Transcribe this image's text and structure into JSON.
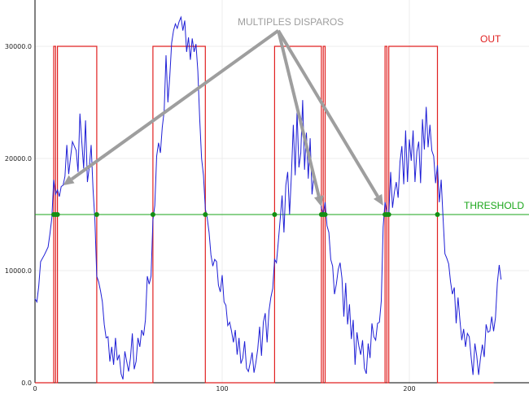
{
  "chart_data": {
    "type": "line",
    "x_ticks": [
      "0",
      "100",
      "200"
    ],
    "y_ticks": [
      "0.0",
      "10000.0",
      "20000.0",
      "30000.0"
    ],
    "xlim": [
      0,
      262
    ],
    "ylim": [
      0,
      34000
    ],
    "grid": true,
    "threshold": 15000,
    "out_high": 30000,
    "out_low": 0,
    "signal": [
      [
        0,
        7500
      ],
      [
        1,
        7200
      ],
      [
        2,
        8600
      ],
      [
        3,
        10800
      ],
      [
        5,
        11400
      ],
      [
        7,
        12100
      ],
      [
        8,
        13300
      ],
      [
        9,
        14700
      ],
      [
        10,
        18100
      ],
      [
        11,
        16800
      ],
      [
        12,
        17200
      ],
      [
        13,
        16600
      ],
      [
        14,
        17500
      ],
      [
        15,
        17600
      ],
      [
        16,
        18400
      ],
      [
        17,
        21200
      ],
      [
        18,
        18600
      ],
      [
        19,
        20100
      ],
      [
        20,
        21500
      ],
      [
        21,
        21100
      ],
      [
        22,
        20700
      ],
      [
        23,
        18800
      ],
      [
        24,
        24000
      ],
      [
        25,
        21500
      ],
      [
        26,
        19100
      ],
      [
        27,
        23400
      ],
      [
        28,
        17900
      ],
      [
        29,
        19200
      ],
      [
        30,
        21200
      ],
      [
        31,
        17300
      ],
      [
        32,
        14500
      ],
      [
        33,
        9500
      ],
      [
        34,
        9000
      ],
      [
        35,
        8200
      ],
      [
        36,
        7200
      ],
      [
        37,
        5200
      ],
      [
        38,
        4000
      ],
      [
        39,
        4100
      ],
      [
        40,
        1900
      ],
      [
        41,
        3200
      ],
      [
        42,
        1600
      ],
      [
        43,
        4000
      ],
      [
        44,
        2000
      ],
      [
        45,
        2500
      ],
      [
        46,
        800
      ],
      [
        47,
        300
      ],
      [
        48,
        2800
      ],
      [
        49,
        1900
      ],
      [
        50,
        1000
      ],
      [
        51,
        2200
      ],
      [
        52,
        4400
      ],
      [
        53,
        1200
      ],
      [
        54,
        1900
      ],
      [
        55,
        4000
      ],
      [
        56,
        3200
      ],
      [
        57,
        4700
      ],
      [
        58,
        4200
      ],
      [
        59,
        5600
      ],
      [
        60,
        9500
      ],
      [
        61,
        8800
      ],
      [
        62,
        9500
      ],
      [
        63,
        14500
      ],
      [
        64,
        15800
      ],
      [
        65,
        20200
      ],
      [
        66,
        21400
      ],
      [
        67,
        20500
      ],
      [
        68,
        22800
      ],
      [
        69,
        24200
      ],
      [
        70,
        29200
      ],
      [
        71,
        25000
      ],
      [
        72,
        27300
      ],
      [
        73,
        30300
      ],
      [
        74,
        31400
      ],
      [
        75,
        32000
      ],
      [
        76,
        31600
      ],
      [
        77,
        32200
      ],
      [
        78,
        32600
      ],
      [
        79,
        31400
      ],
      [
        80,
        32300
      ],
      [
        81,
        29500
      ],
      [
        82,
        30800
      ],
      [
        83,
        28800
      ],
      [
        84,
        30700
      ],
      [
        85,
        29500
      ],
      [
        86,
        30200
      ],
      [
        87,
        27800
      ],
      [
        88,
        23500
      ],
      [
        89,
        20000
      ],
      [
        90,
        18500
      ],
      [
        91,
        15500
      ],
      [
        92,
        14700
      ],
      [
        93,
        13400
      ],
      [
        94,
        11400
      ],
      [
        95,
        10400
      ],
      [
        96,
        11000
      ],
      [
        97,
        10800
      ],
      [
        98,
        8700
      ],
      [
        99,
        8100
      ],
      [
        100,
        9600
      ],
      [
        101,
        7200
      ],
      [
        102,
        6900
      ],
      [
        103,
        5100
      ],
      [
        104,
        5400
      ],
      [
        105,
        4600
      ],
      [
        106,
        3600
      ],
      [
        107,
        4700
      ],
      [
        108,
        2500
      ],
      [
        109,
        4000
      ],
      [
        110,
        1700
      ],
      [
        111,
        2200
      ],
      [
        112,
        3700
      ],
      [
        113,
        1300
      ],
      [
        114,
        1000
      ],
      [
        115,
        1800
      ],
      [
        116,
        2700
      ],
      [
        117,
        900
      ],
      [
        118,
        1800
      ],
      [
        119,
        3000
      ],
      [
        120,
        5000
      ],
      [
        121,
        2400
      ],
      [
        122,
        5400
      ],
      [
        123,
        6200
      ],
      [
        124,
        3600
      ],
      [
        125,
        6400
      ],
      [
        126,
        7600
      ],
      [
        127,
        8400
      ],
      [
        128,
        11000
      ],
      [
        129,
        10700
      ],
      [
        130,
        12600
      ],
      [
        131,
        14600
      ],
      [
        132,
        16700
      ],
      [
        133,
        13400
      ],
      [
        134,
        17600
      ],
      [
        135,
        18800
      ],
      [
        136,
        15000
      ],
      [
        137,
        18600
      ],
      [
        138,
        23000
      ],
      [
        139,
        18500
      ],
      [
        140,
        24200
      ],
      [
        141,
        19200
      ],
      [
        142,
        20500
      ],
      [
        143,
        25200
      ],
      [
        144,
        19000
      ],
      [
        145,
        22300
      ],
      [
        146,
        18200
      ],
      [
        147,
        21800
      ],
      [
        148,
        16800
      ],
      [
        149,
        18500
      ],
      [
        150,
        17700
      ],
      [
        151,
        16600
      ],
      [
        152,
        16800
      ],
      [
        153,
        15600
      ],
      [
        154,
        15000
      ],
      [
        155,
        16100
      ],
      [
        156,
        14000
      ],
      [
        157,
        13400
      ],
      [
        158,
        11000
      ],
      [
        159,
        10400
      ],
      [
        160,
        7900
      ],
      [
        161,
        8800
      ],
      [
        162,
        10100
      ],
      [
        163,
        10700
      ],
      [
        164,
        9300
      ],
      [
        165,
        5900
      ],
      [
        166,
        8900
      ],
      [
        167,
        5200
      ],
      [
        168,
        7000
      ],
      [
        169,
        3900
      ],
      [
        170,
        5600
      ],
      [
        171,
        1600
      ],
      [
        172,
        4500
      ],
      [
        173,
        3300
      ],
      [
        174,
        2500
      ],
      [
        175,
        3800
      ],
      [
        176,
        1300
      ],
      [
        177,
        800
      ],
      [
        178,
        3500
      ],
      [
        179,
        2200
      ],
      [
        180,
        5300
      ],
      [
        181,
        4100
      ],
      [
        182,
        3800
      ],
      [
        183,
        5300
      ],
      [
        184,
        5400
      ],
      [
        185,
        7300
      ],
      [
        186,
        13900
      ],
      [
        187,
        16100
      ],
      [
        188,
        15200
      ],
      [
        189,
        14900
      ],
      [
        190,
        18800
      ],
      [
        191,
        15600
      ],
      [
        192,
        17000
      ],
      [
        193,
        17900
      ],
      [
        194,
        16500
      ],
      [
        195,
        19700
      ],
      [
        196,
        21100
      ],
      [
        197,
        17700
      ],
      [
        198,
        22500
      ],
      [
        199,
        17900
      ],
      [
        200,
        21700
      ],
      [
        201,
        19800
      ],
      [
        202,
        22500
      ],
      [
        203,
        17900
      ],
      [
        204,
        20600
      ],
      [
        205,
        21500
      ],
      [
        206,
        17800
      ],
      [
        207,
        23500
      ],
      [
        208,
        20800
      ],
      [
        209,
        24600
      ],
      [
        210,
        21000
      ],
      [
        211,
        23000
      ],
      [
        212,
        20700
      ],
      [
        213,
        20200
      ],
      [
        214,
        17800
      ],
      [
        215,
        19400
      ],
      [
        216,
        16100
      ],
      [
        217,
        18100
      ],
      [
        218,
        14700
      ],
      [
        219,
        11500
      ],
      [
        220,
        11100
      ],
      [
        221,
        10600
      ],
      [
        222,
        9000
      ],
      [
        223,
        7900
      ],
      [
        224,
        8500
      ],
      [
        225,
        5300
      ],
      [
        226,
        7600
      ],
      [
        227,
        5600
      ],
      [
        228,
        3800
      ],
      [
        229,
        4800
      ],
      [
        230,
        3200
      ],
      [
        231,
        4400
      ],
      [
        232,
        4100
      ],
      [
        233,
        2300
      ],
      [
        234,
        700
      ],
      [
        235,
        3500
      ],
      [
        236,
        2400
      ],
      [
        237,
        700
      ],
      [
        238,
        2200
      ],
      [
        239,
        3400
      ],
      [
        240,
        2300
      ],
      [
        241,
        5200
      ],
      [
        242,
        4500
      ],
      [
        243,
        4600
      ],
      [
        244,
        5900
      ],
      [
        245,
        4600
      ],
      [
        246,
        5800
      ],
      [
        247,
        8900
      ],
      [
        248,
        10500
      ],
      [
        249,
        9200
      ]
    ],
    "out_transitions": [
      [
        0,
        0
      ],
      [
        10,
        0
      ],
      [
        10,
        30000
      ],
      [
        11,
        30000
      ],
      [
        11,
        0
      ],
      [
        12,
        0
      ],
      [
        12,
        30000
      ],
      [
        33,
        30000
      ],
      [
        33,
        0
      ],
      [
        63,
        0
      ],
      [
        63,
        30000
      ],
      [
        91,
        30000
      ],
      [
        91,
        0
      ],
      [
        128,
        0
      ],
      [
        128,
        30000
      ],
      [
        153,
        30000
      ],
      [
        153,
        0
      ],
      [
        154,
        0
      ],
      [
        154,
        30000
      ],
      [
        155,
        30000
      ],
      [
        155,
        0
      ],
      [
        187,
        0
      ],
      [
        187,
        30000
      ],
      [
        188,
        30000
      ],
      [
        188,
        0
      ],
      [
        189,
        0
      ],
      [
        189,
        30000
      ],
      [
        215,
        30000
      ],
      [
        215,
        0
      ],
      [
        245,
        0
      ]
    ],
    "crossings": [
      10,
      11,
      12,
      33,
      63,
      91,
      128,
      153,
      154,
      155,
      187,
      188,
      189,
      215
    ],
    "arrow_targets": [
      [
        15,
        17600
      ],
      [
        153,
        15700
      ],
      [
        186,
        15800
      ]
    ],
    "arrow_origin": [
      130,
      31400
    ],
    "colors": {
      "signal": "#1f1fd6",
      "out": "#e02020",
      "threshold": "#1aa61a",
      "annotation": "#9e9e9e"
    }
  },
  "labels": {
    "multiples": "MULTIPLES DISPAROS",
    "out": "OUT",
    "threshold": "THRESHOLD"
  }
}
